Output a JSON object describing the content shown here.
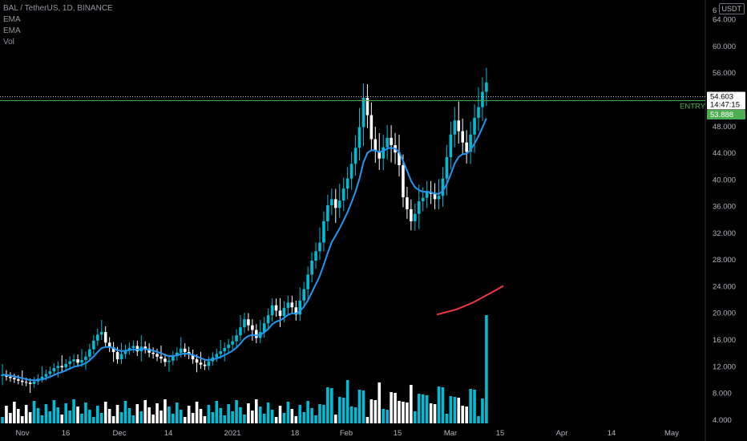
{
  "legend": {
    "symbol": "BAL / TetherUS, 1D, BINANCE",
    "ind1": "EMA",
    "ind2": "EMA",
    "ind3": "Vol"
  },
  "currency": "USDT",
  "price_axis_top_label": "6",
  "colors": {
    "up": "#26a69a",
    "up_candle": "#00bcd4",
    "down": "#ffffff",
    "ema_fast": "#2196f3",
    "ema_slow": "#f23645",
    "entry": "#4caf50",
    "vol_up": "#00bcd4",
    "vol_down": "#ffffff"
  },
  "chart_data": {
    "type": "candlestick",
    "title": "BAL / TetherUS, 1D, BINANCE",
    "y_ticks": [
      4,
      8,
      12,
      16,
      20,
      24,
      28,
      32,
      36,
      40,
      44,
      48,
      52,
      56,
      60,
      64
    ],
    "y_tick_labels": [
      "4.000",
      "8.000",
      "12.000",
      "16.000",
      "20.000",
      "24.000",
      "28.000",
      "32.000",
      "36.000",
      "40.000",
      "44.000",
      "48.000",
      "52.000",
      "56.000",
      "60.000",
      "64.000"
    ],
    "ylim": [
      3.5,
      66
    ],
    "x_tick_labels": [
      "Nov",
      "16",
      "Dec",
      "14",
      "2021",
      "18",
      "Feb",
      "15",
      "Mar",
      "15",
      "Apr",
      "14",
      "May"
    ],
    "last_price": "54.603",
    "countdown": "14:47:15",
    "entry_price": 53.888,
    "entry_label": "ENTRY",
    "entry_price_label": "53.888",
    "close_series": [
      10.8,
      10.5,
      10.3,
      10.1,
      9.9,
      9.7,
      9.6,
      9.4,
      9.8,
      10.2,
      10.5,
      10.9,
      11.3,
      11.8,
      12.1,
      11.9,
      12.4,
      12.8,
      13.1,
      12.6,
      13.0,
      13.5,
      14.6,
      15.9,
      16.8,
      17.2,
      15.6,
      14.9,
      14.2,
      13.1,
      13.9,
      14.5,
      14.8,
      15.1,
      14.3,
      15.0,
      14.7,
      14.1,
      13.9,
      13.5,
      13.2,
      12.7,
      12.9,
      13.6,
      14.1,
      14.7,
      14.2,
      13.8,
      13.1,
      12.6,
      12.3,
      12.1,
      12.8,
      13.4,
      13.9,
      14.3,
      14.8,
      15.3,
      15.8,
      16.7,
      17.9,
      19.1,
      18.2,
      17.5,
      16.3,
      17.2,
      18.5,
      19.7,
      21.2,
      20.4,
      19.6,
      20.8,
      21.6,
      20.9,
      19.8,
      21.9,
      23.6,
      25.8,
      27.9,
      29.3,
      30.6,
      33.8,
      36.2,
      37.1,
      35.8,
      36.9,
      38.7,
      40.2,
      42.4,
      44.8,
      47.9,
      52.3,
      49.7,
      46.1,
      44.3,
      43.2,
      44.9,
      46.3,
      45.2,
      44.1,
      42.2,
      37.4,
      35.6,
      33.8,
      34.9,
      36.8,
      37.3,
      38.2,
      37.9,
      37.1,
      37.6,
      40.2,
      43.4,
      46.8,
      48.9,
      47.3,
      45.6,
      44.2,
      46.8,
      49.3,
      50.9,
      53.2,
      54.6
    ]
  }
}
